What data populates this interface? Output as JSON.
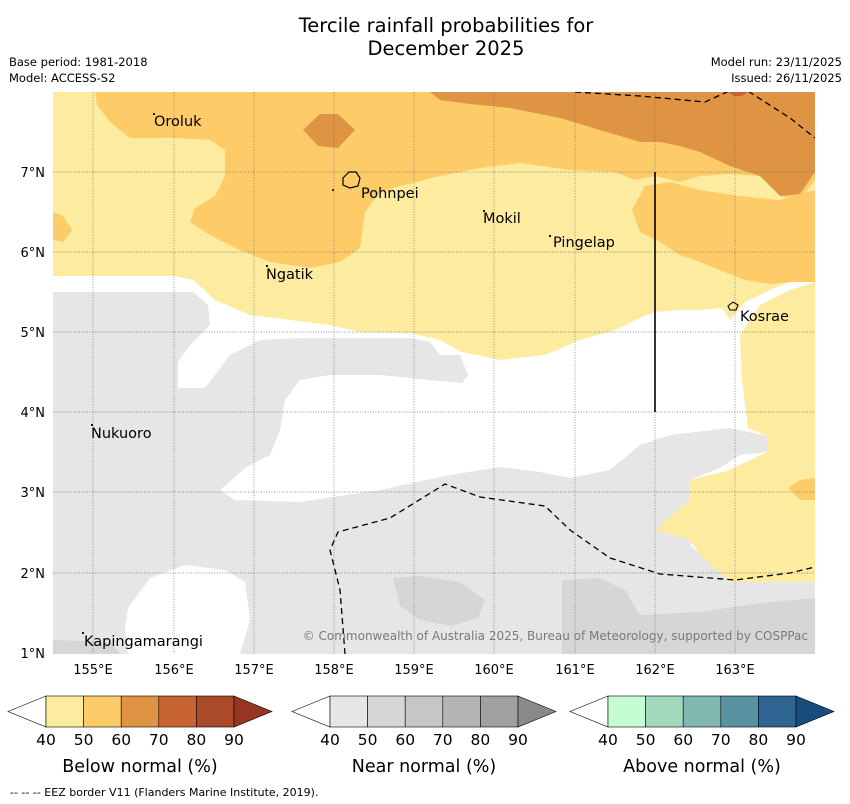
{
  "title_line1": "Tercile rainfall probabilities for",
  "title_line2": "December 2025",
  "base_period": "Base period: 1981-2018",
  "model": "Model: ACCESS-S2",
  "model_run": "Model run: 23/11/2025",
  "issued": "Issued: 26/11/2025",
  "lat_ticks": [
    "7°N",
    "6°N",
    "5°N",
    "4°N",
    "3°N",
    "2°N",
    "1°N"
  ],
  "lon_ticks": [
    "155°E",
    "156°E",
    "157°E",
    "158°E",
    "159°E",
    "160°E",
    "161°E",
    "162°E",
    "163°E"
  ],
  "places": [
    {
      "name": "Oroluk"
    },
    {
      "name": "Pohnpei"
    },
    {
      "name": "Mokil"
    },
    {
      "name": "Pingelap"
    },
    {
      "name": "Ngatik"
    },
    {
      "name": "Kosrae"
    },
    {
      "name": "Nukuoro"
    },
    {
      "name": "Kapingamarangi"
    }
  ],
  "copyright": "© Commonwealth of Australia 2025, Bureau of Meteorology, supported by COSPPac",
  "colorbars": [
    {
      "title": "Below normal (%)",
      "levels": [
        "40",
        "50",
        "60",
        "70",
        "80",
        "90"
      ],
      "colors": [
        "#fdeca0",
        "#fdcb68",
        "#df9444",
        "#c86431",
        "#ab4a29",
        "#963520"
      ]
    },
    {
      "title": "Near normal (%)",
      "levels": [
        "40",
        "50",
        "60",
        "70",
        "80",
        "90"
      ],
      "colors": [
        "#e6e6e6",
        "#d6d6d6",
        "#c6c6c6",
        "#b4b4b4",
        "#a1a1a1",
        "#898989"
      ]
    },
    {
      "title": "Above normal (%)",
      "levels": [
        "40",
        "50",
        "60",
        "70",
        "80",
        "90"
      ],
      "colors": [
        "#c6fcd1",
        "#a1d9bd",
        "#80b7b0",
        "#5891a0",
        "#2f6593",
        "#194c7c"
      ]
    }
  ],
  "footer": "--  --  -- EEZ border V11 (Flanders Marine Institute, 2019)."
}
